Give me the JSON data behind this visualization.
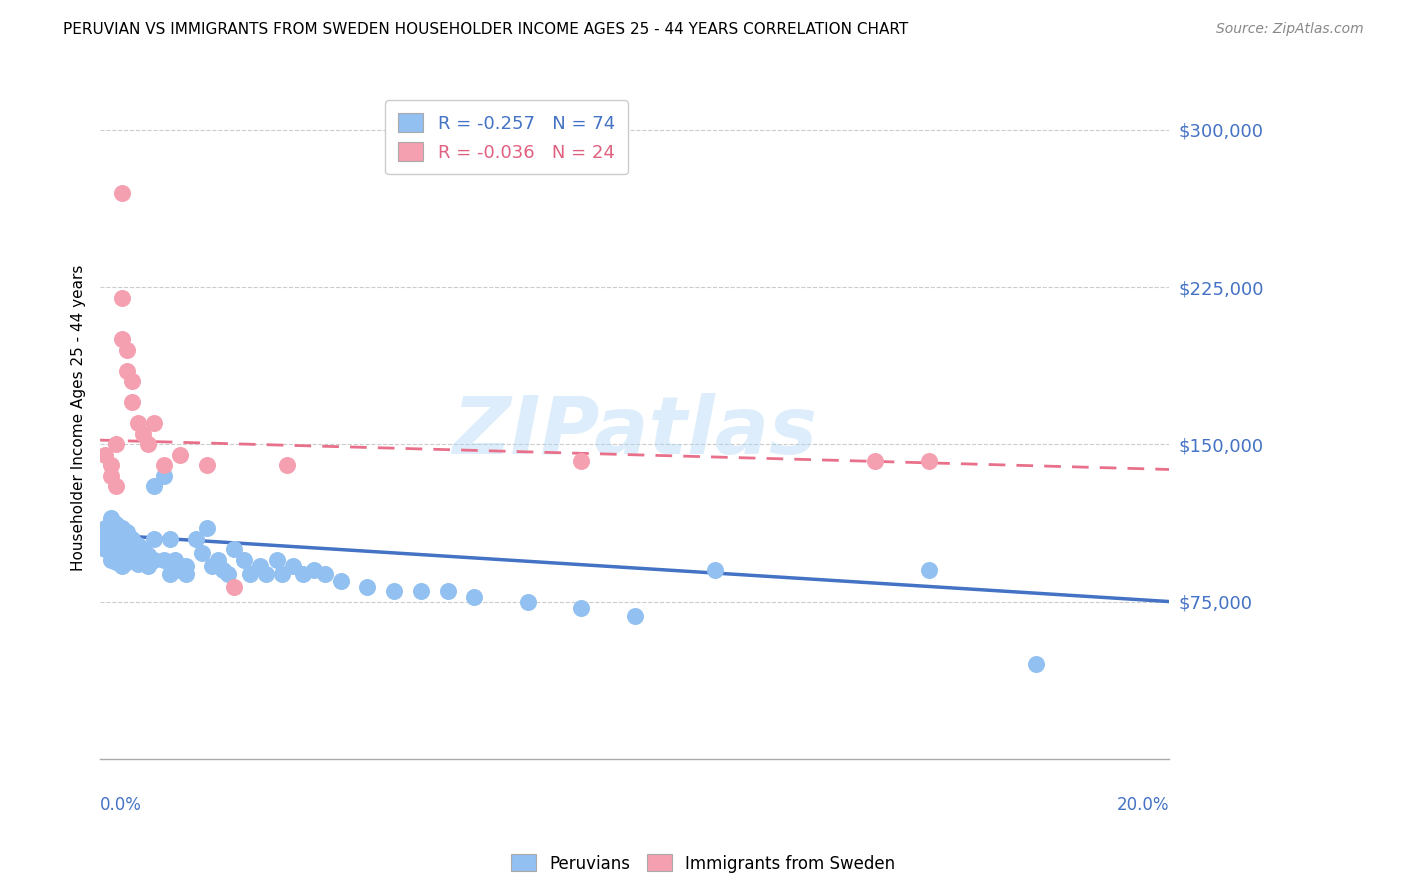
{
  "title": "PERUVIAN VS IMMIGRANTS FROM SWEDEN HOUSEHOLDER INCOME AGES 25 - 44 YEARS CORRELATION CHART",
  "source": "Source: ZipAtlas.com",
  "ylabel": "Householder Income Ages 25 - 44 years",
  "ytick_labels": [
    "$75,000",
    "$150,000",
    "$225,000",
    "$300,000"
  ],
  "ytick_values": [
    75000,
    150000,
    225000,
    300000
  ],
  "ymin": 0,
  "ymax": 325000,
  "xmin": 0.0,
  "xmax": 0.2,
  "legend_blue": "R = -0.257   N = 74",
  "legend_pink": "R = -0.036   N = 24",
  "blue_color": "#92c0f0",
  "pink_color": "#f4a0b0",
  "blue_line_color": "#4472c4",
  "pink_line_color": "#e8708a",
  "watermark": "ZIPatlas",
  "peruvians_x": [
    0.001,
    0.001,
    0.001,
    0.002,
    0.002,
    0.002,
    0.002,
    0.002,
    0.003,
    0.003,
    0.003,
    0.003,
    0.003,
    0.003,
    0.004,
    0.004,
    0.004,
    0.004,
    0.004,
    0.005,
    0.005,
    0.005,
    0.005,
    0.006,
    0.006,
    0.006,
    0.007,
    0.007,
    0.007,
    0.008,
    0.008,
    0.009,
    0.009,
    0.01,
    0.01,
    0.01,
    0.012,
    0.012,
    0.013,
    0.013,
    0.014,
    0.015,
    0.016,
    0.016,
    0.018,
    0.019,
    0.02,
    0.021,
    0.022,
    0.023,
    0.024,
    0.025,
    0.027,
    0.028,
    0.03,
    0.031,
    0.033,
    0.034,
    0.036,
    0.038,
    0.04,
    0.042,
    0.045,
    0.05,
    0.055,
    0.06,
    0.065,
    0.07,
    0.08,
    0.09,
    0.1,
    0.115,
    0.155,
    0.175
  ],
  "peruvians_y": [
    110000,
    105000,
    100000,
    115000,
    108000,
    102000,
    98000,
    95000,
    112000,
    108000,
    105000,
    100000,
    97000,
    94000,
    110000,
    105000,
    100000,
    95000,
    92000,
    108000,
    103000,
    98000,
    94000,
    105000,
    100000,
    95000,
    102000,
    98000,
    93000,
    100000,
    95000,
    97000,
    92000,
    130000,
    105000,
    95000,
    135000,
    95000,
    105000,
    88000,
    95000,
    90000,
    88000,
    92000,
    105000,
    98000,
    110000,
    92000,
    95000,
    90000,
    88000,
    100000,
    95000,
    88000,
    92000,
    88000,
    95000,
    88000,
    92000,
    88000,
    90000,
    88000,
    85000,
    82000,
    80000,
    80000,
    80000,
    77000,
    75000,
    72000,
    68000,
    90000,
    90000,
    45000
  ],
  "sweden_x": [
    0.001,
    0.002,
    0.002,
    0.003,
    0.003,
    0.004,
    0.004,
    0.004,
    0.005,
    0.005,
    0.006,
    0.006,
    0.007,
    0.008,
    0.009,
    0.01,
    0.012,
    0.015,
    0.02,
    0.025,
    0.035,
    0.09,
    0.145,
    0.155
  ],
  "sweden_y": [
    145000,
    140000,
    135000,
    150000,
    130000,
    270000,
    220000,
    200000,
    195000,
    185000,
    180000,
    170000,
    160000,
    155000,
    150000,
    160000,
    140000,
    145000,
    140000,
    82000,
    140000,
    142000,
    142000,
    142000
  ]
}
